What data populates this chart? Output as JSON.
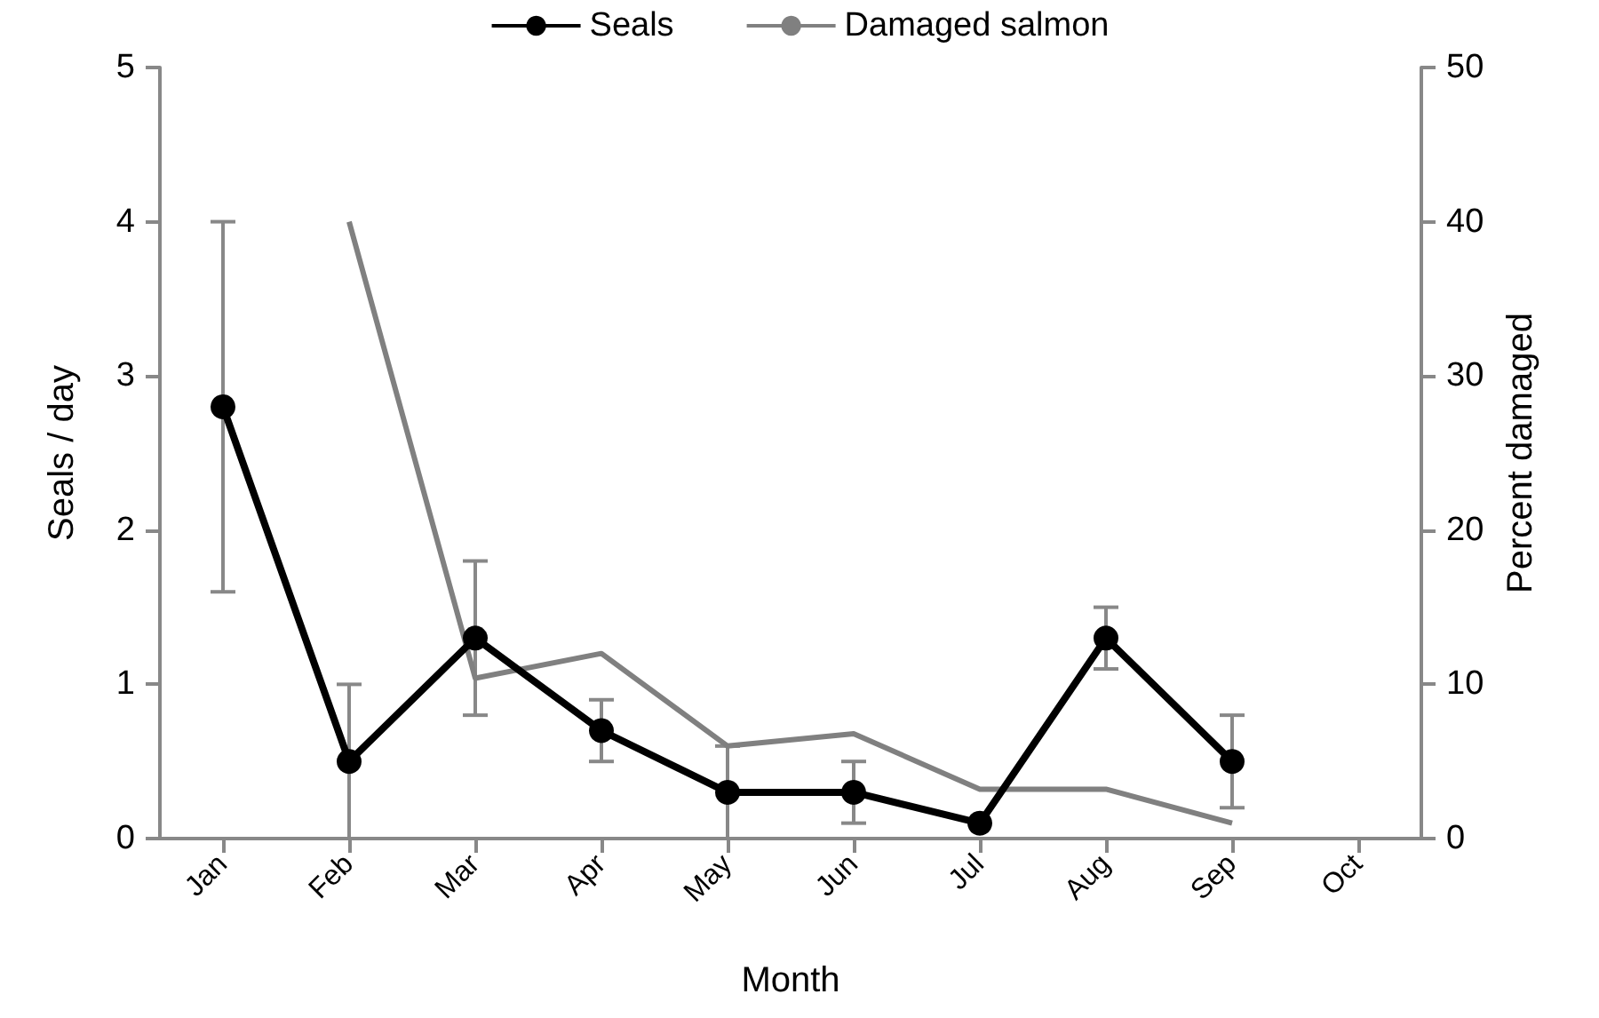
{
  "chart_data": {
    "type": "line",
    "xlabel": "Month",
    "ylabel": "Seals / day",
    "y2label": "Percent damaged",
    "categories": [
      "Jan",
      "Feb",
      "Mar",
      "Apr",
      "May",
      "Jun",
      "Jul",
      "Aug",
      "Sep",
      "Oct"
    ],
    "series": [
      {
        "name": "Seals",
        "color": "#000000",
        "marker": "circle",
        "values": [
          2.8,
          0.5,
          1.3,
          0.7,
          0.3,
          0.3,
          0.1,
          1.3,
          0.5,
          null
        ],
        "errors": [
          [
            1.6,
            4.0
          ],
          [
            0,
            1.0
          ],
          [
            0.8,
            1.8
          ],
          [
            0.5,
            0.9
          ],
          [
            0,
            0.6
          ],
          [
            0.1,
            0.5
          ],
          null,
          [
            1.1,
            1.5
          ],
          [
            0.2,
            0.8
          ],
          null
        ]
      },
      {
        "name": "Damaged salmon",
        "color": "#808080",
        "marker": "none",
        "axis": "y2",
        "values": [
          null,
          40,
          10.4,
          12,
          6,
          6.8,
          3.2,
          3.2,
          1,
          null
        ]
      }
    ],
    "ylim": [
      0,
      5
    ],
    "yticks": [
      0,
      1,
      2,
      3,
      4,
      5
    ],
    "y2lim": [
      0,
      50
    ],
    "y2ticks": [
      0,
      10,
      20,
      30,
      40,
      50
    ],
    "grid": false,
    "legend": "top"
  }
}
